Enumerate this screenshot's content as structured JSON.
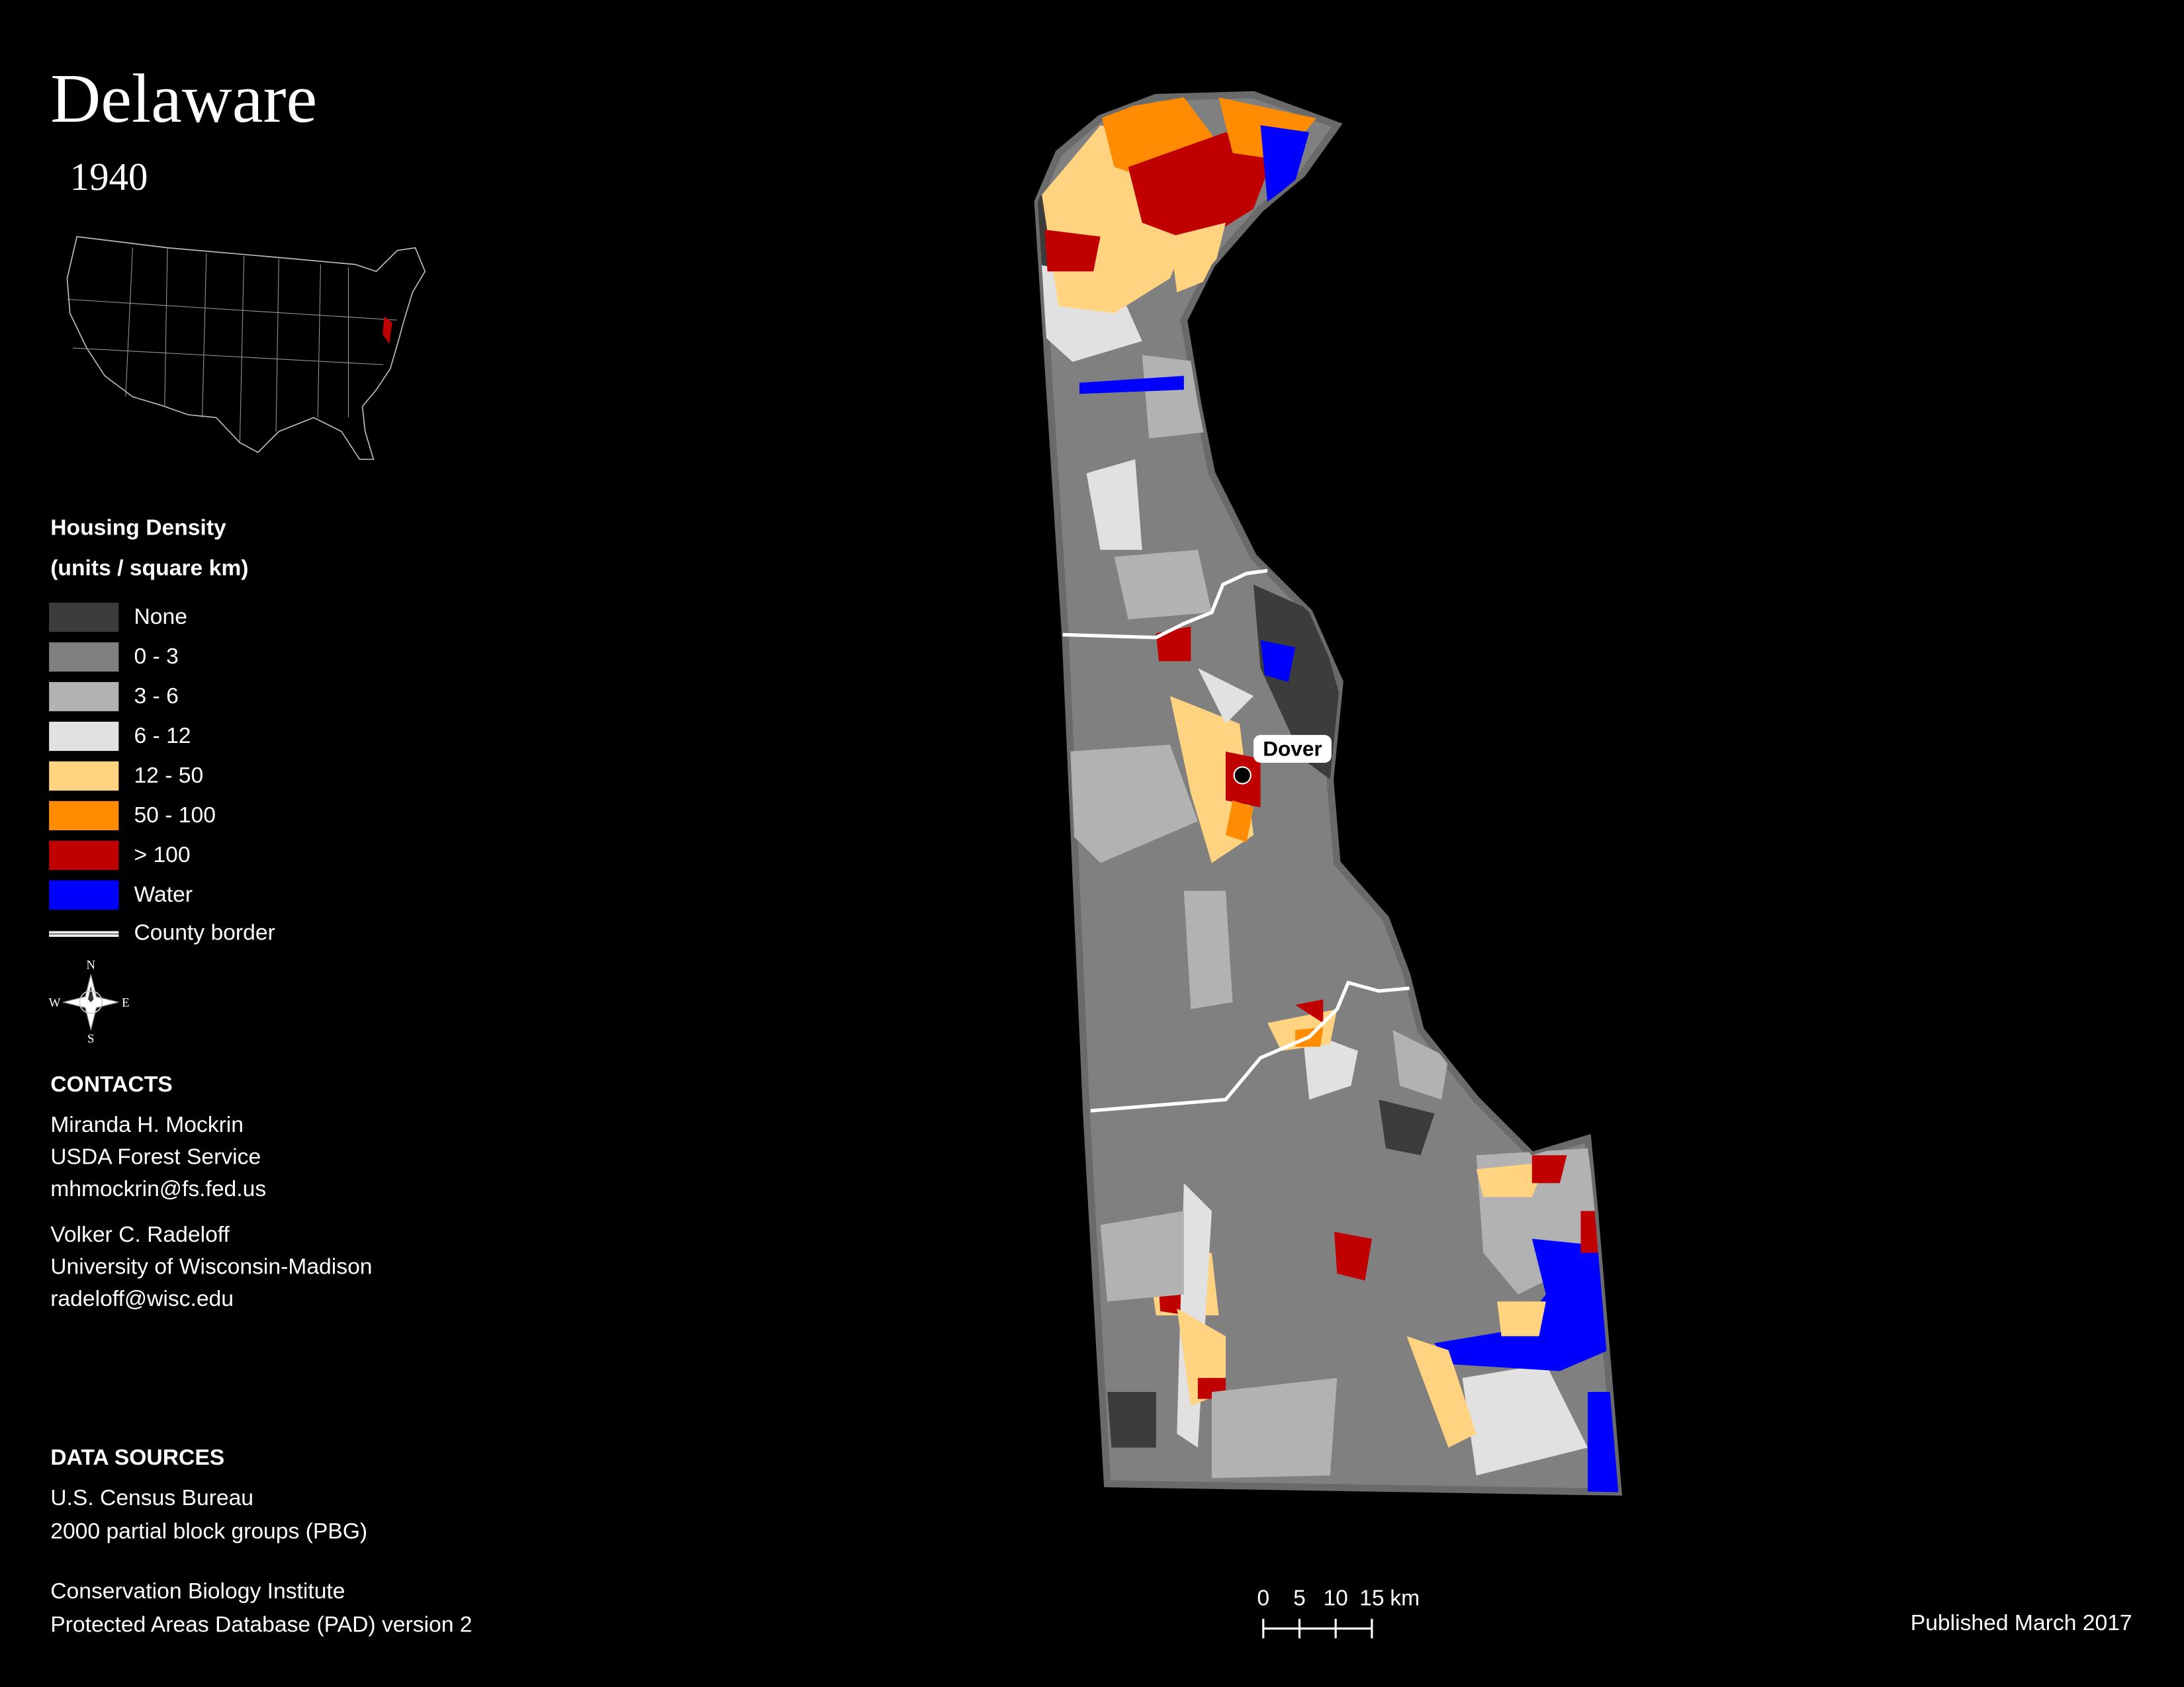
{
  "header": {
    "title": "Delaware",
    "subtitle": "1940"
  },
  "legend": {
    "title": "Housing Density",
    "subtitle": "(units / square km)",
    "items": [
      {
        "label": "None",
        "color": "#3c3c3c"
      },
      {
        "label": "0 - 3",
        "color": "#808080"
      },
      {
        "label": "3 - 6",
        "color": "#b2b2b2"
      },
      {
        "label": "6 - 12",
        "color": "#e1e1e1"
      },
      {
        "label": "12 - 50",
        "color": "#ffd37f"
      },
      {
        "label": "50 - 100",
        "color": "#ff8c00"
      },
      {
        "label": "> 100",
        "color": "#c00000"
      },
      {
        "label": "Water",
        "color": "#0000ff"
      }
    ],
    "border": {
      "label": "County border",
      "color": "#ffffff"
    }
  },
  "compass": {
    "n": "N",
    "e": "E",
    "s": "S",
    "w": "W"
  },
  "contacts": {
    "heading": "CONTACTS",
    "people": [
      [
        "Miranda H. Mockrin",
        "USDA Forest Service",
        "mhmockrin@fs.fed.us"
      ],
      [
        "Volker C. Radeloff",
        "University of Wisconsin-Madison",
        "radeloff@wisc.edu"
      ]
    ]
  },
  "data_sources": {
    "heading": "DATA SOURCES",
    "groups": [
      [
        "U.S. Census Bureau",
        "2000 partial block groups (PBG)"
      ],
      [
        "Conservation Biology Institute",
        "Protected Areas Database (PAD) version 2"
      ]
    ]
  },
  "map": {
    "city": "Dover"
  },
  "scale_bar": {
    "ticks": [
      0,
      5,
      10,
      15
    ],
    "unit": "km"
  },
  "footer": {
    "published": "Published March 2017"
  }
}
